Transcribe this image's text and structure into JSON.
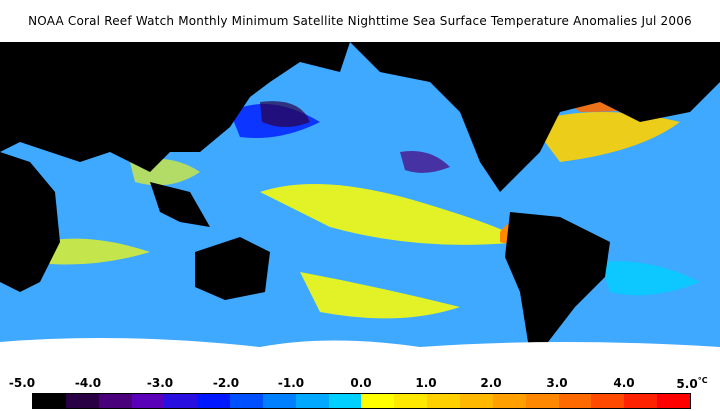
{
  "title": "NOAA Coral Reef Watch Monthly Minimum Satellite Nighttime Sea Surface Temperature Anomalies    Jul 2006",
  "map": {
    "ocean_color": "#3fa8ff",
    "land_color": "#000000",
    "ice_color": "#ffffff"
  },
  "colorbar": {
    "labels": [
      "-5.0",
      "-4.0",
      "-3.0",
      "-2.0",
      "-1.0",
      "0.0",
      "1.0",
      "2.0",
      "3.0",
      "4.0",
      "5.0"
    ],
    "unit": "°C",
    "colors": [
      "#000000",
      "#2a0044",
      "#4a007a",
      "#5a00b8",
      "#2a10e0",
      "#0018ff",
      "#0050ff",
      "#0080ff",
      "#00a8ff",
      "#00d0ff",
      "#ffff00",
      "#ffe800",
      "#ffd000",
      "#ffb800",
      "#ffa000",
      "#ff8800",
      "#ff6a00",
      "#ff4a00",
      "#ff2200",
      "#ff0000"
    ]
  }
}
